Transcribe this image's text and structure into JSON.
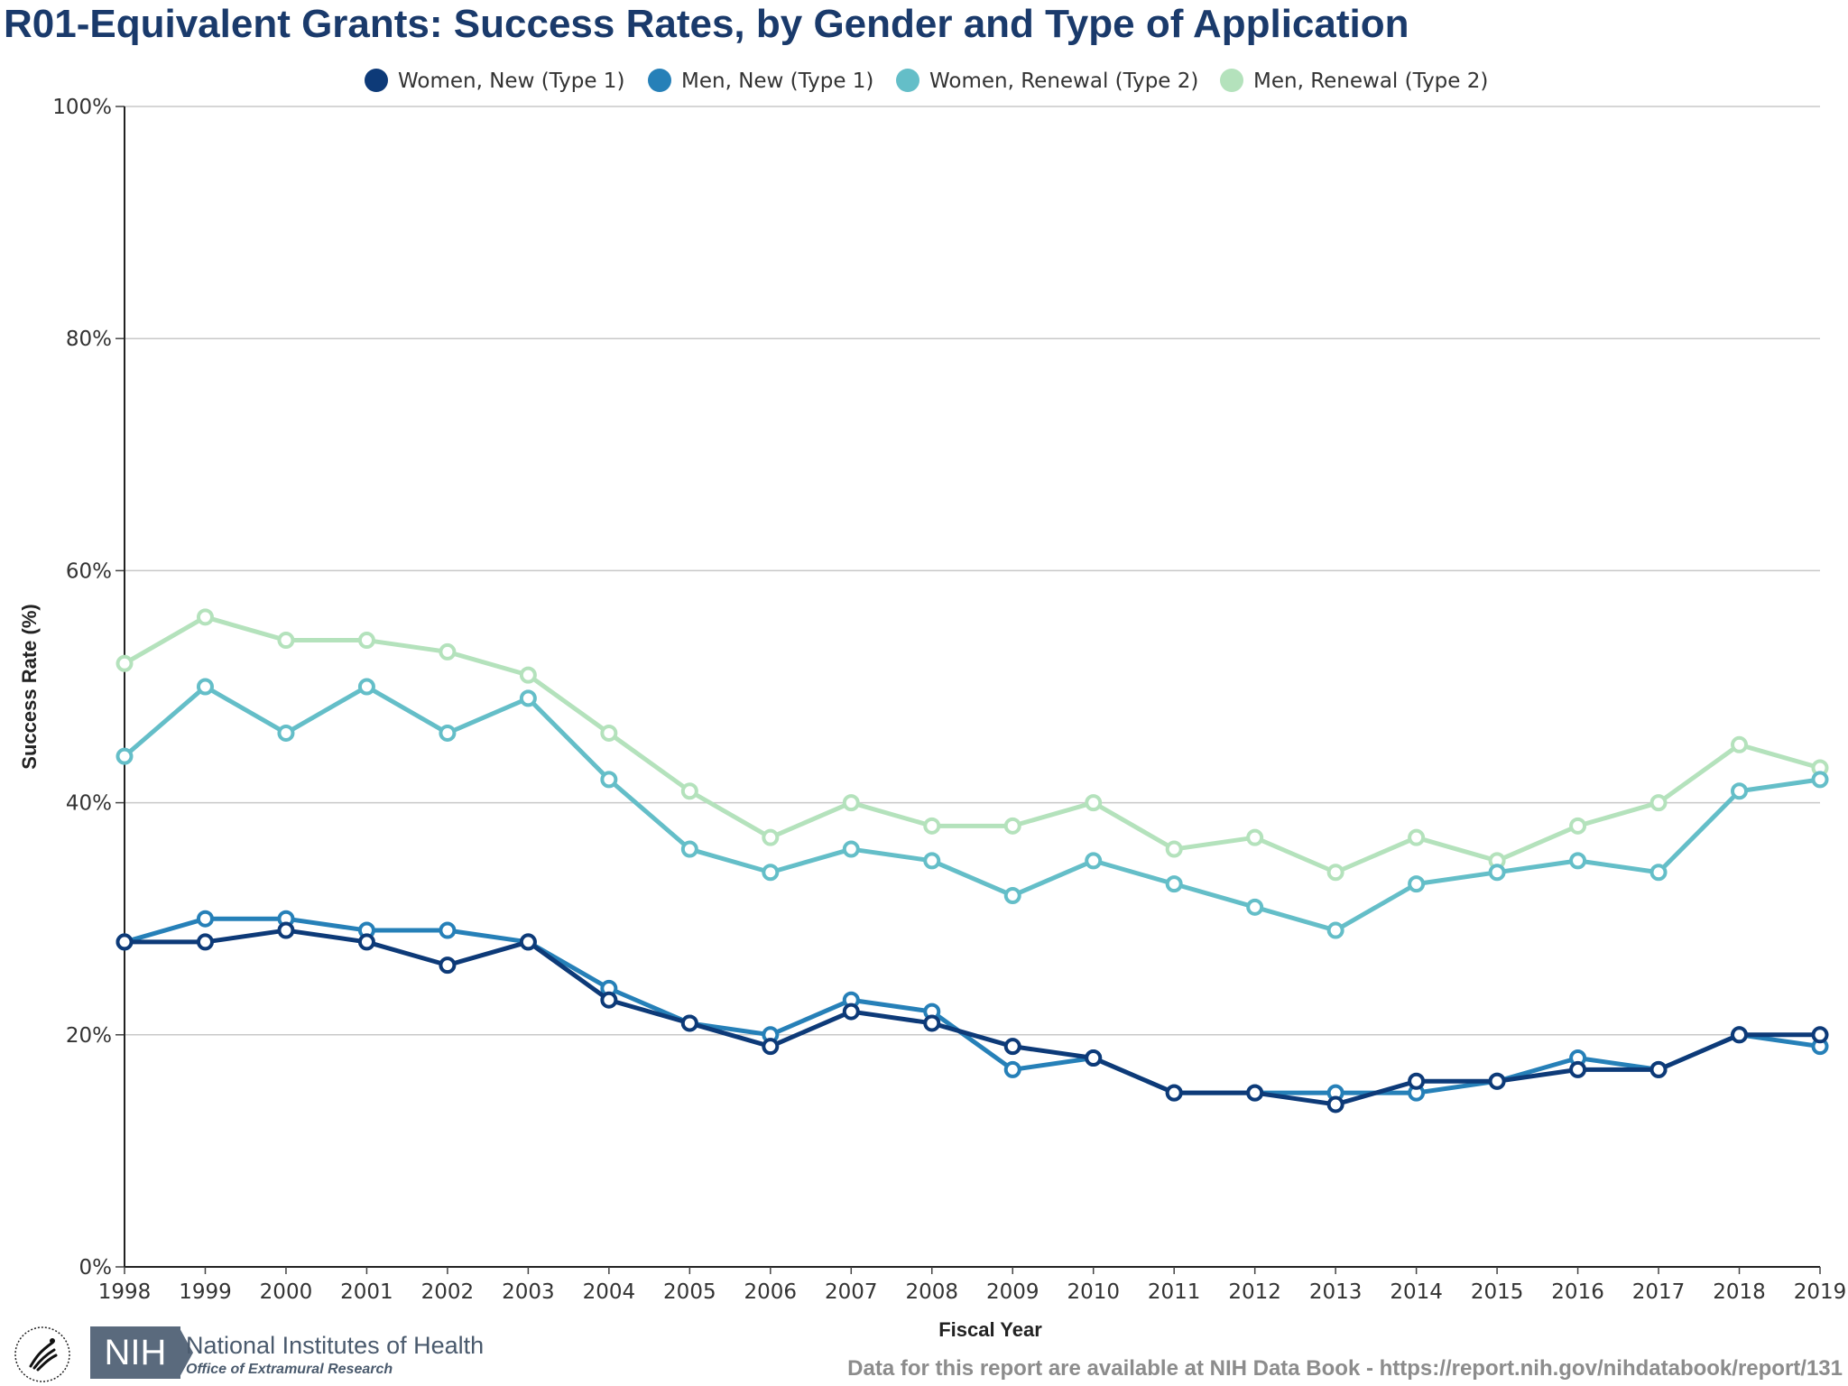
{
  "chart_data": {
    "type": "line",
    "title": "R01-Equivalent Grants: Success Rates, by Gender and Type of Application",
    "xlabel": "Fiscal Year",
    "ylabel": "Success Rate (%)",
    "ylim": [
      0,
      100
    ],
    "y_ticks": [
      "0%",
      "20%",
      "40%",
      "60%",
      "80%",
      "100%"
    ],
    "y_tick_values": [
      0,
      20,
      40,
      60,
      80,
      100
    ],
    "x": [
      "1998",
      "1999",
      "2000",
      "2001",
      "2002",
      "2003",
      "2004",
      "2005",
      "2006",
      "2007",
      "2008",
      "2009",
      "2010",
      "2011",
      "2012",
      "2013",
      "2014",
      "2015",
      "2016",
      "2017",
      "2018",
      "2019"
    ],
    "grid": true,
    "legend_position": "top-center",
    "series": [
      {
        "name": "Women, New (Type 1)",
        "color": "#0d3a78",
        "values": [
          28,
          28,
          29,
          28,
          26,
          28,
          23,
          21,
          19,
          22,
          21,
          19,
          18,
          15,
          15,
          14,
          16,
          16,
          17,
          17,
          20,
          20
        ]
      },
      {
        "name": "Men, New (Type 1)",
        "color": "#2680b8",
        "values": [
          28,
          30,
          30,
          29,
          29,
          28,
          24,
          21,
          20,
          23,
          22,
          17,
          18,
          15,
          15,
          15,
          15,
          16,
          18,
          17,
          20,
          19
        ]
      },
      {
        "name": "Women, Renewal (Type 2)",
        "color": "#64bec8",
        "values": [
          44,
          50,
          46,
          50,
          46,
          49,
          42,
          36,
          34,
          36,
          35,
          32,
          35,
          33,
          31,
          29,
          33,
          34,
          35,
          34,
          41,
          42
        ]
      },
      {
        "name": "Men, Renewal (Type 2)",
        "color": "#b4e2bc",
        "values": [
          52,
          56,
          54,
          54,
          53,
          51,
          46,
          41,
          37,
          40,
          38,
          38,
          40,
          36,
          37,
          34,
          37,
          35,
          38,
          40,
          45,
          43
        ]
      }
    ]
  },
  "footer": {
    "org_name": "National Institutes of Health",
    "org_abbrev": "NIH",
    "office": "Office of Extramural Research",
    "note": "Data for this report are available at NIH Data Book - https://report.nih.gov/nihdatabook/report/131"
  }
}
